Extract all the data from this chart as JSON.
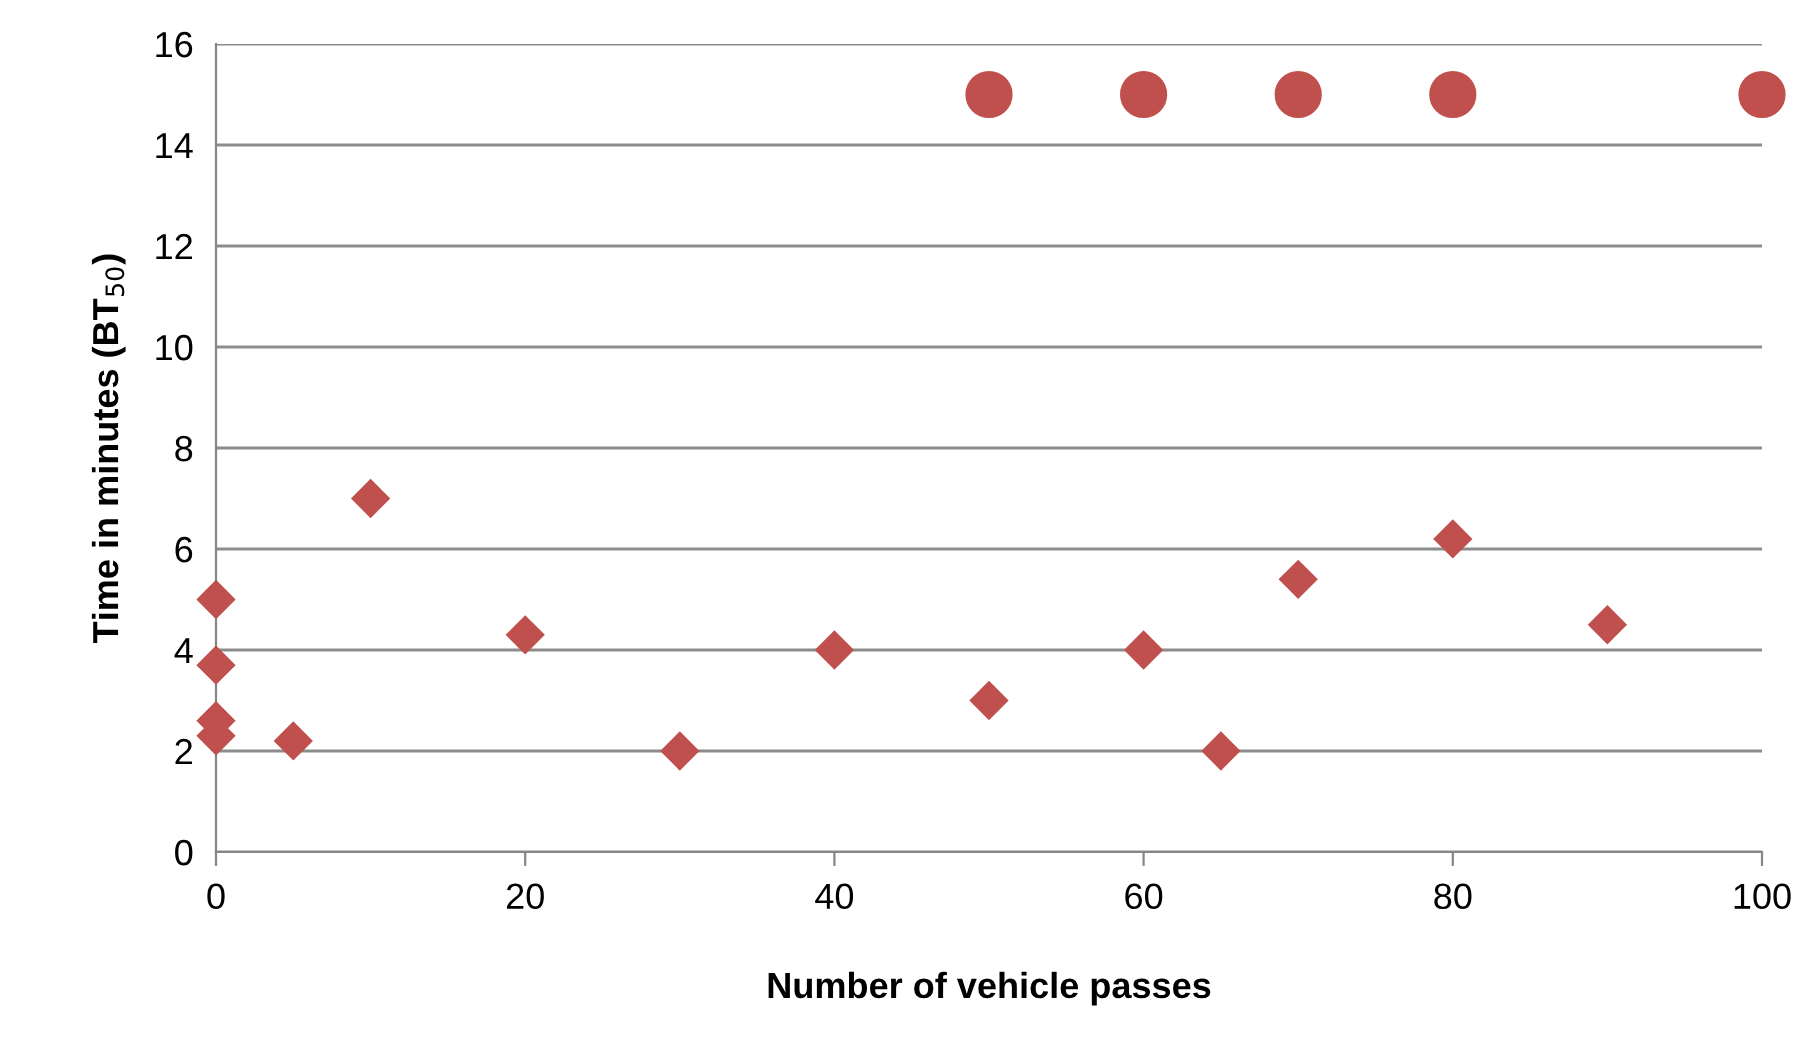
{
  "chart_data": {
    "type": "scatter",
    "xlabel": "Number of vehicle passes",
    "ylabel": "Time in minutes (BT$_{50}$)",
    "xlim": [
      0,
      100
    ],
    "xticks": [
      0,
      20,
      40,
      60,
      80,
      100
    ],
    "ylim": [
      0,
      16
    ],
    "yticks": [
      0,
      2,
      4,
      6,
      8,
      10,
      12,
      14,
      16
    ],
    "grid": "y",
    "series": [
      {
        "color": "#c0504d",
        "marker": "diamond",
        "x": [
          0,
          0,
          0,
          0,
          5,
          10,
          20,
          30,
          40,
          50,
          60,
          65,
          70,
          80,
          90
        ],
        "values": [
          5,
          3.7,
          2.6,
          2.3,
          2.2,
          7,
          4.3,
          2,
          4,
          3,
          4,
          2,
          5.4,
          6.2,
          4.5
        ]
      },
      {
        "color": "#c0504d",
        "marker": "circle",
        "x": [
          50,
          60,
          70,
          80,
          100
        ],
        "values": [
          15,
          15,
          15,
          15,
          15
        ]
      }
    ]
  }
}
